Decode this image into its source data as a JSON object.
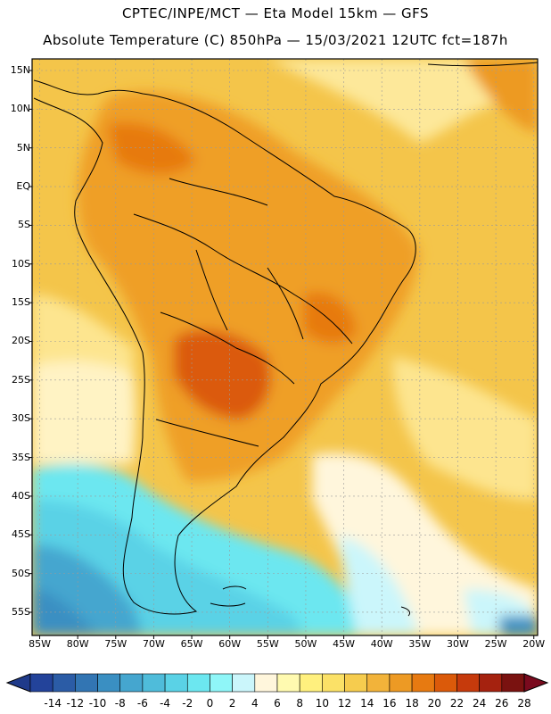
{
  "header": {
    "line1": "CPTEC/INPE/MCT —  Eta Model 15km — GFS",
    "line2": "Absolute Temperature (C) 850hPa — 15/03/2021 12UTC fct=187h"
  },
  "lat_ticks": [
    "15N",
    "10N",
    "5N",
    "EQ",
    "5S",
    "10S",
    "15S",
    "20S",
    "25S",
    "30S",
    "35S",
    "40S",
    "45S",
    "50S",
    "55S"
  ],
  "lat_values": [
    15,
    10,
    5,
    0,
    -5,
    -10,
    -15,
    -20,
    -25,
    -30,
    -35,
    -40,
    -45,
    -50,
    -55
  ],
  "lon_ticks": [
    "85W",
    "80W",
    "75W",
    "70W",
    "65W",
    "60W",
    "55W",
    "50W",
    "45W",
    "40W",
    "35W",
    "30W",
    "25W",
    "20W"
  ],
  "lon_values": [
    -85,
    -80,
    -75,
    -70,
    -65,
    -60,
    -55,
    -50,
    -45,
    -40,
    -35,
    -30,
    -25,
    -20
  ],
  "colorbar": {
    "labels": [
      "-14",
      "-12",
      "-10",
      "-8",
      "-6",
      "-4",
      "-2",
      "0",
      "2",
      "4",
      "6",
      "8",
      "10",
      "12",
      "14",
      "16",
      "18",
      "20",
      "22",
      "24",
      "26",
      "28"
    ],
    "colors": [
      "#23439a",
      "#2b5ca6",
      "#3275b3",
      "#3a8fc2",
      "#45a6cf",
      "#4fbcda",
      "#5ad2e6",
      "#6ce7f0",
      "#8ff6f8",
      "#cbf6fb",
      "#fff6dc",
      "#fffab0",
      "#fff07e",
      "#fbe167",
      "#f6cc4e",
      "#f2b33a",
      "#ed9a24",
      "#e77a11",
      "#db5a0a",
      "#c63a0c",
      "#a5220f",
      "#7a1210"
    ],
    "end_low": "#1f3a8a",
    "end_high": "#7a0a1e"
  },
  "map": {
    "lon_min": -86,
    "lon_max": -19.5,
    "lat_min": -58,
    "lat_max": 16.5
  }
}
